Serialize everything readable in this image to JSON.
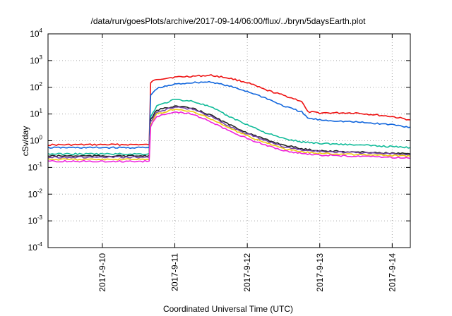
{
  "chart_data": {
    "type": "line",
    "title": "/data/run/goesPlots/archive/2017-09-14/06:00/flux/../bryn/5daysEarth.plot",
    "xlabel": "Coordinated Universal Time (UTC)",
    "ylabel": "cSv/day",
    "y_scale": "log",
    "ylim": [
      0.0001,
      10000
    ],
    "xlim": [
      "2017-09-09 06:00",
      "2017-09-14 06:00"
    ],
    "grid": true,
    "legend": "none",
    "x_ticks": [
      "2017-9-10",
      "2017-9-11",
      "2017-9-12",
      "2017-9-13",
      "2017-9-14"
    ],
    "y_ticks": [
      {
        "base": "10",
        "exp": "-4"
      },
      {
        "base": "10",
        "exp": "-3"
      },
      {
        "base": "10",
        "exp": "-2"
      },
      {
        "base": "10",
        "exp": "-1"
      },
      {
        "base": "10",
        "exp": "0"
      },
      {
        "base": "10",
        "exp": "1"
      },
      {
        "base": "10",
        "exp": "2"
      },
      {
        "base": "10",
        "exp": "3"
      },
      {
        "base": "10",
        "exp": "4"
      }
    ],
    "series": [
      {
        "color": "#ee1111",
        "x": [
          "2017-09-09 06:00",
          "2017-09-10 12:00",
          "2017-09-10 15:30",
          "2017-09-10 16:00",
          "2017-09-10 18:00",
          "2017-09-11 00:00",
          "2017-09-11 06:00",
          "2017-09-11 12:00",
          "2017-09-11 18:00",
          "2017-09-12 00:00",
          "2017-09-12 06:00",
          "2017-09-12 12:00",
          "2017-09-12 18:00",
          "2017-09-12 20:00",
          "2017-09-13 00:00",
          "2017-09-13 12:00",
          "2017-09-14 00:00",
          "2017-09-14 06:00"
        ],
        "y": [
          0.7,
          0.72,
          0.7,
          150,
          200,
          240,
          260,
          280,
          220,
          150,
          80,
          50,
          30,
          12,
          11,
          11,
          8,
          6
        ]
      },
      {
        "color": "#1166dd",
        "x": [
          "2017-09-09 06:00",
          "2017-09-10 12:00",
          "2017-09-10 15:30",
          "2017-09-10 16:00",
          "2017-09-10 18:00",
          "2017-09-11 00:00",
          "2017-09-11 06:00",
          "2017-09-11 12:00",
          "2017-09-11 18:00",
          "2017-09-12 00:00",
          "2017-09-12 06:00",
          "2017-09-12 12:00",
          "2017-09-12 18:00",
          "2017-09-12 20:00",
          "2017-09-13 00:00",
          "2017-09-13 12:00",
          "2017-09-14 00:00",
          "2017-09-14 06:00"
        ],
        "y": [
          0.55,
          0.55,
          0.55,
          50,
          90,
          130,
          150,
          160,
          110,
          70,
          40,
          20,
          12,
          7,
          6,
          5,
          4,
          3.2
        ]
      },
      {
        "color": "#11bb99",
        "x": [
          "2017-09-09 06:00",
          "2017-09-10 12:00",
          "2017-09-10 15:30",
          "2017-09-10 16:00",
          "2017-09-10 18:00",
          "2017-09-11 00:00",
          "2017-09-11 06:00",
          "2017-09-11 12:00",
          "2017-09-11 18:00",
          "2017-09-12 00:00",
          "2017-09-12 06:00",
          "2017-09-12 12:00",
          "2017-09-12 18:00",
          "2017-09-13 00:00",
          "2017-09-13 12:00",
          "2017-09-14 00:00",
          "2017-09-14 06:00"
        ],
        "y": [
          0.32,
          0.32,
          0.32,
          8,
          20,
          35,
          30,
          18,
          8,
          4,
          2,
          1.2,
          0.9,
          0.8,
          0.7,
          0.6,
          0.55
        ]
      },
      {
        "color": "#222222",
        "x": [
          "2017-09-09 06:00",
          "2017-09-10 12:00",
          "2017-09-10 15:30",
          "2017-09-10 16:00",
          "2017-09-10 18:00",
          "2017-09-11 00:00",
          "2017-09-11 06:00",
          "2017-09-11 12:00",
          "2017-09-11 18:00",
          "2017-09-12 00:00",
          "2017-09-12 06:00",
          "2017-09-12 12:00",
          "2017-09-12 18:00",
          "2017-09-13 00:00",
          "2017-09-13 12:00",
          "2017-09-14 00:00",
          "2017-09-14 06:00"
        ],
        "y": [
          0.27,
          0.27,
          0.27,
          6,
          14,
          20,
          16,
          9,
          4,
          2,
          1.1,
          0.7,
          0.5,
          0.42,
          0.38,
          0.34,
          0.32
        ]
      },
      {
        "color": "#7744aa",
        "x": [
          "2017-09-09 06:00",
          "2017-09-10 12:00",
          "2017-09-10 15:30",
          "2017-09-10 16:00",
          "2017-09-10 18:00",
          "2017-09-11 00:00",
          "2017-09-11 06:00",
          "2017-09-11 12:00",
          "2017-09-11 18:00",
          "2017-09-12 00:00",
          "2017-09-12 06:00",
          "2017-09-12 12:00",
          "2017-09-12 18:00",
          "2017-09-13 00:00",
          "2017-09-13 12:00",
          "2017-09-14 00:00",
          "2017-09-14 06:00"
        ],
        "y": [
          0.24,
          0.24,
          0.24,
          5,
          12,
          18,
          15,
          8,
          3.5,
          1.8,
          1,
          0.6,
          0.45,
          0.4,
          0.36,
          0.32,
          0.3
        ]
      },
      {
        "color": "#eecc11",
        "x": [
          "2017-09-09 06:00",
          "2017-09-10 12:00",
          "2017-09-10 15:30",
          "2017-09-10 16:00",
          "2017-09-10 18:00",
          "2017-09-11 00:00",
          "2017-09-11 06:00",
          "2017-09-11 12:00",
          "2017-09-11 18:00",
          "2017-09-12 00:00",
          "2017-09-12 06:00",
          "2017-09-12 12:00",
          "2017-09-12 18:00",
          "2017-09-13 00:00",
          "2017-09-13 12:00",
          "2017-09-14 00:00",
          "2017-09-14 06:00"
        ],
        "y": [
          0.2,
          0.2,
          0.2,
          4,
          10,
          15,
          12,
          6.5,
          3,
          1.5,
          0.85,
          0.5,
          0.38,
          0.34,
          0.3,
          0.28,
          0.26
        ]
      },
      {
        "color": "#ee22dd",
        "x": [
          "2017-09-09 06:00",
          "2017-09-10 12:00",
          "2017-09-10 15:30",
          "2017-09-10 16:00",
          "2017-09-10 18:00",
          "2017-09-11 00:00",
          "2017-09-11 06:00",
          "2017-09-11 12:00",
          "2017-09-11 18:00",
          "2017-09-12 00:00",
          "2017-09-12 06:00",
          "2017-09-12 12:00",
          "2017-09-12 18:00",
          "2017-09-13 00:00",
          "2017-09-13 12:00",
          "2017-09-14 00:00",
          "2017-09-14 06:00"
        ],
        "y": [
          0.17,
          0.17,
          0.17,
          3.5,
          8,
          12,
          10,
          5,
          2.3,
          1.2,
          0.7,
          0.42,
          0.33,
          0.29,
          0.26,
          0.24,
          0.22
        ]
      }
    ]
  }
}
